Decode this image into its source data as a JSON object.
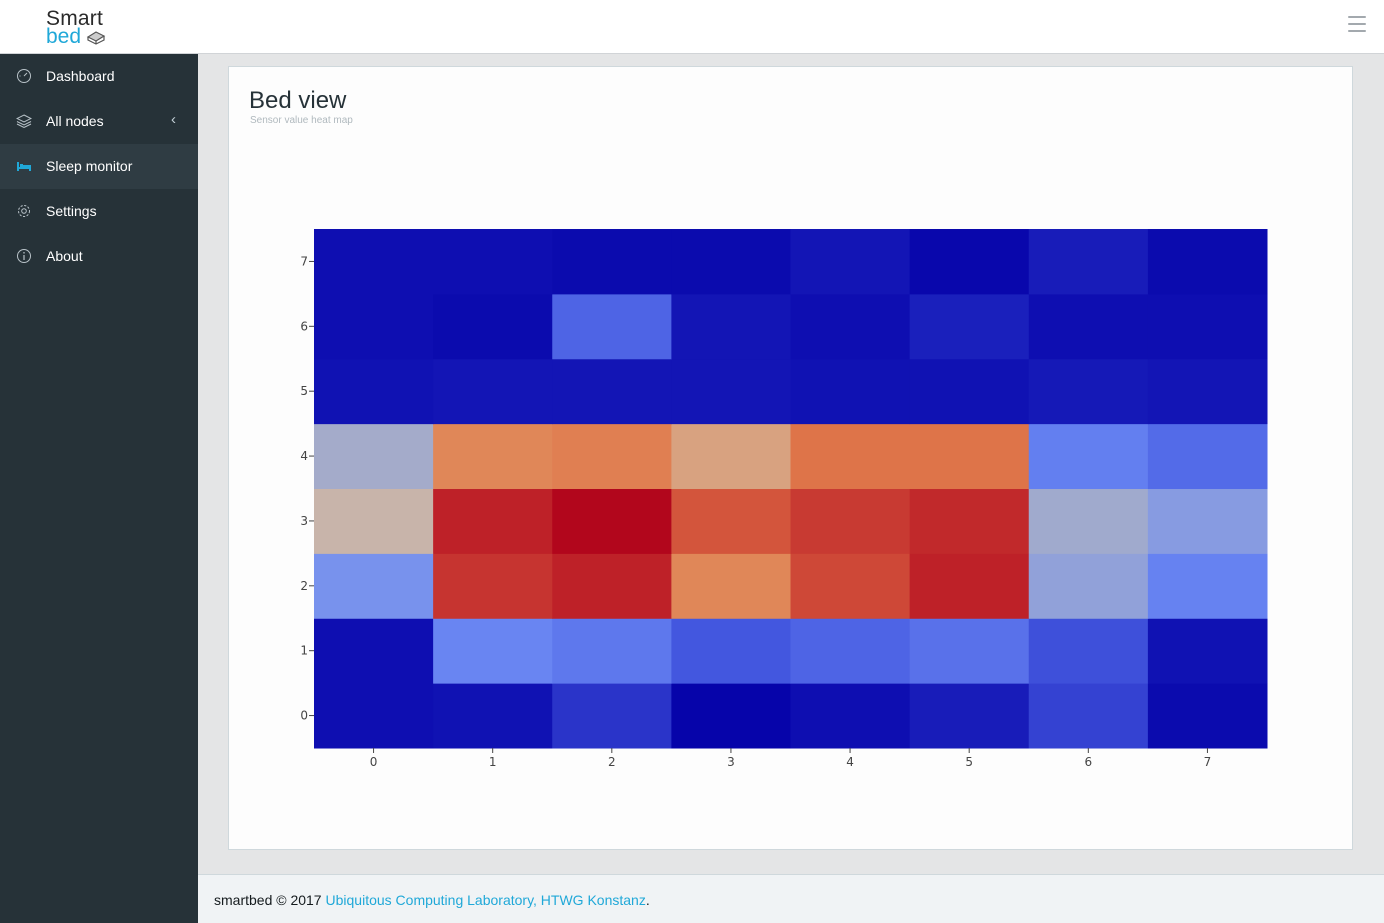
{
  "header": {
    "logo_line1": "Smart",
    "logo_line2": "bed",
    "menu_icon": "hamburger-icon"
  },
  "sidebar": {
    "items": [
      {
        "label": "Dashboard",
        "icon": "speedometer-icon",
        "active": false
      },
      {
        "label": "All nodes",
        "icon": "layers-icon",
        "active": false,
        "chevron": "‹"
      },
      {
        "label": "Sleep monitor",
        "icon": "bed-icon",
        "active": true
      },
      {
        "label": "Settings",
        "icon": "gear-icon",
        "active": false
      },
      {
        "label": "About",
        "icon": "info-icon",
        "active": false
      }
    ]
  },
  "card": {
    "title": "Bed view",
    "subtitle": "Sensor value heat map"
  },
  "chart_data": {
    "type": "heatmap",
    "x": [
      0,
      1,
      2,
      3,
      4,
      5,
      6,
      7
    ],
    "y": [
      0,
      1,
      2,
      3,
      4,
      5,
      6,
      7
    ],
    "x_tick_labels": [
      "0",
      "1",
      "2",
      "3",
      "4",
      "5",
      "6",
      "7"
    ],
    "y_tick_labels": [
      "0",
      "1",
      "2",
      "3",
      "4",
      "5",
      "6",
      "7"
    ],
    "z": [
      [
        0.03,
        0.04,
        0.14,
        0.0,
        0.03,
        0.07,
        0.18,
        0.02
      ],
      [
        0.03,
        0.38,
        0.34,
        0.24,
        0.28,
        0.32,
        0.22,
        0.04
      ],
      [
        0.42,
        0.89,
        0.93,
        0.74,
        0.86,
        0.93,
        0.47,
        0.37
      ],
      [
        0.6,
        0.93,
        1.0,
        0.84,
        0.88,
        0.91,
        0.5,
        0.45
      ],
      [
        0.51,
        0.74,
        0.76,
        0.66,
        0.79,
        0.79,
        0.36,
        0.3
      ],
      [
        0.04,
        0.05,
        0.05,
        0.05,
        0.04,
        0.04,
        0.06,
        0.05
      ],
      [
        0.03,
        0.02,
        0.28,
        0.05,
        0.03,
        0.08,
        0.03,
        0.03
      ],
      [
        0.03,
        0.03,
        0.02,
        0.02,
        0.05,
        0.01,
        0.07,
        0.02
      ]
    ],
    "colorscale": "blue-to-red"
  },
  "footer": {
    "prefix": "smartbed © 2017 ",
    "link": "Ubiquitous Computing Laboratory, HTWG Konstanz",
    "suffix": "."
  }
}
